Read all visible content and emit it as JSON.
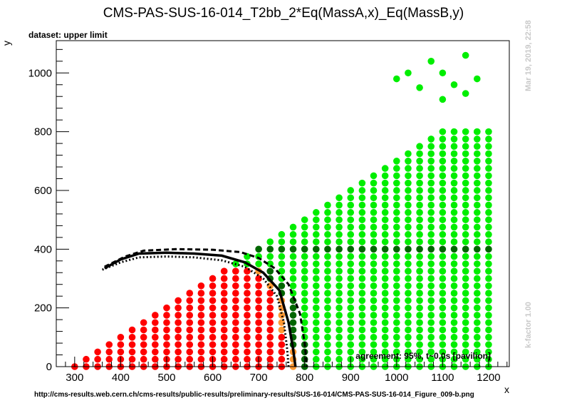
{
  "header": {
    "title": "CMS-PAS-SUS-16-014_T2bb_2*Eq(MassA,x)_Eq(MassB,y)",
    "dataset_label": "dataset: upper limit"
  },
  "side_notes": {
    "timestamp": "Mar 19, 2019, 22:58",
    "kfactor": "k-factor 1.00"
  },
  "footer": {
    "url": "http://cms-results.web.cern.ch/cms-results/public-results/preliminary-results/SUS-16-014/CMS-PAS-SUS-16-014_Figure_009-b.png"
  },
  "colors": {
    "excluded": "#ff0000",
    "allowed": "#00ee00",
    "near_allowed": "#006600",
    "near_excluded": "#ff9933",
    "curve": "#000000"
  },
  "chart_data": {
    "type": "scatter",
    "xlabel": "x",
    "ylabel": "y",
    "xlim": [
      260,
      1245
    ],
    "ylim": [
      0,
      1110
    ],
    "x_ticks": [
      300,
      400,
      500,
      600,
      700,
      800,
      900,
      1000,
      1100,
      1200
    ],
    "y_ticks": [
      0,
      200,
      400,
      600,
      800,
      1000
    ],
    "grid": false,
    "annotation": "agreement: 95%, t~0.0s [pavilion]",
    "regions": {
      "triangle_vertices": [
        [
          300,
          0
        ],
        [
          1200,
          0
        ],
        [
          1200,
          900
        ]
      ],
      "point_spacing": 25,
      "classification": "red = excluded, orange = excluded near boundary, dark green = allowed near boundary, green = allowed"
    },
    "sparse_points": [
      [
        1000,
        980
      ],
      [
        1025,
        1000
      ],
      [
        1050,
        950
      ],
      [
        1075,
        1040
      ],
      [
        1100,
        1000
      ],
      [
        1100,
        910
      ],
      [
        1125,
        960
      ],
      [
        1150,
        1060
      ],
      [
        1150,
        930
      ],
      [
        1175,
        980
      ],
      [
        1175,
        800
      ]
    ],
    "curves": [
      {
        "style": "solid",
        "points": [
          [
            365,
            335
          ],
          [
            400,
            365
          ],
          [
            440,
            385
          ],
          [
            500,
            388
          ],
          [
            560,
            385
          ],
          [
            620,
            378
          ],
          [
            670,
            355
          ],
          [
            710,
            320
          ],
          [
            745,
            260
          ],
          [
            765,
            150
          ],
          [
            775,
            60
          ],
          [
            780,
            0
          ]
        ]
      },
      {
        "style": "dashed",
        "points": [
          [
            365,
            340
          ],
          [
            410,
            375
          ],
          [
            450,
            395
          ],
          [
            520,
            400
          ],
          [
            600,
            398
          ],
          [
            660,
            390
          ],
          [
            700,
            370
          ],
          [
            735,
            335
          ],
          [
            765,
            280
          ],
          [
            790,
            180
          ],
          [
            800,
            80
          ],
          [
            805,
            0
          ]
        ]
      },
      {
        "style": "dotted",
        "points": [
          [
            360,
            330
          ],
          [
            400,
            355
          ],
          [
            440,
            372
          ],
          [
            500,
            375
          ],
          [
            560,
            372
          ],
          [
            620,
            362
          ],
          [
            670,
            340
          ],
          [
            710,
            300
          ],
          [
            740,
            240
          ],
          [
            755,
            150
          ],
          [
            762,
            60
          ],
          [
            765,
            0
          ]
        ]
      }
    ]
  }
}
